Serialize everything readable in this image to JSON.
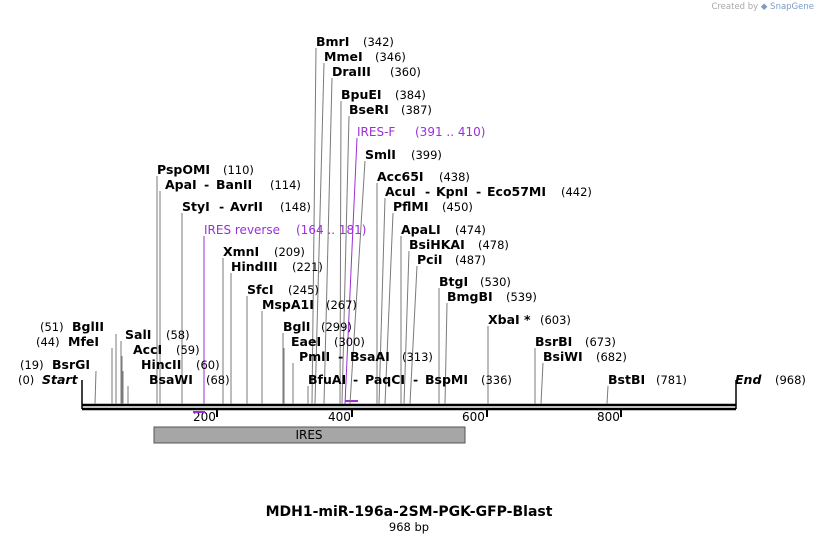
{
  "credit": {
    "prefix": "Created by",
    "brand": "SnapGene"
  },
  "map": {
    "title": "MDH1-miR-196a-2SM-PGK-GFP-Blast",
    "length_label": "968 bp",
    "length": 968,
    "ticks": [
      "200",
      "400",
      "600",
      "800"
    ],
    "start_label": "Start",
    "start_pos": "(0)",
    "end_label": "End",
    "end_pos": "(968)"
  },
  "enzymes": [
    {
      "name": "BsrGI",
      "pos": "(19)"
    },
    {
      "name": "MfeI",
      "pos": "(44)"
    },
    {
      "name": "BglII",
      "pos": "(51)"
    },
    {
      "name": "SalI",
      "pos": "(58)"
    },
    {
      "name": "AccI",
      "pos": "(59)"
    },
    {
      "name": "HincII",
      "pos": "(60)"
    },
    {
      "name": "BsaWI",
      "pos": "(68)"
    },
    {
      "name": "PspOMI",
      "pos": "(110)"
    },
    {
      "name": "ApaI",
      "name2": "BanII",
      "pos": "(114)"
    },
    {
      "name": "StyI",
      "name2": "AvrII",
      "pos": "(148)"
    },
    {
      "name": "XmnI",
      "pos": "(209)"
    },
    {
      "name": "HindIII",
      "pos": "(221)"
    },
    {
      "name": "SfcI",
      "pos": "(245)"
    },
    {
      "name": "MspA1I",
      "pos": "(267)"
    },
    {
      "name": "BglI",
      "pos": "(299)"
    },
    {
      "name": "EaeI",
      "pos": "(300)"
    },
    {
      "name": "PmlI",
      "name2": "BsaAI",
      "pos": "(313)"
    },
    {
      "name": "BfuAI",
      "name2": "PaqCI",
      "name3": "BspMI",
      "pos": "(336)"
    },
    {
      "name": "BmrI",
      "pos": "(342)"
    },
    {
      "name": "MmeI",
      "pos": "(346)"
    },
    {
      "name": "DraIII",
      "pos": "(360)"
    },
    {
      "name": "BpuEI",
      "pos": "(384)"
    },
    {
      "name": "BseRI",
      "pos": "(387)"
    },
    {
      "name": "SmlI",
      "pos": "(399)"
    },
    {
      "name": "Acc65I",
      "pos": "(438)"
    },
    {
      "name": "AcuI",
      "name2": "KpnI",
      "name3": "Eco57MI",
      "pos": "(442)"
    },
    {
      "name": "PflMI",
      "pos": "(450)"
    },
    {
      "name": "ApaLI",
      "pos": "(474)"
    },
    {
      "name": "BsiHKAI",
      "pos": "(478)"
    },
    {
      "name": "PciI",
      "pos": "(487)"
    },
    {
      "name": "BtgI",
      "pos": "(530)"
    },
    {
      "name": "BmgBI",
      "pos": "(539)"
    },
    {
      "name": "XbaI *",
      "pos": "(603)"
    },
    {
      "name": "BsrBI",
      "pos": "(673)"
    },
    {
      "name": "BsiWI",
      "pos": "(682)"
    },
    {
      "name": "BstBI",
      "pos": "(781)"
    }
  ],
  "primers": [
    {
      "name": "IRES-F",
      "range": "(391 .. 410)"
    },
    {
      "name": "IRES reverse",
      "range": "(164 .. 181)"
    }
  ],
  "features": [
    {
      "name": "IRES"
    }
  ],
  "colors": {
    "primer": "#9b30d9",
    "feature_fill": "#a6a6a6",
    "backbone": "#000000"
  }
}
